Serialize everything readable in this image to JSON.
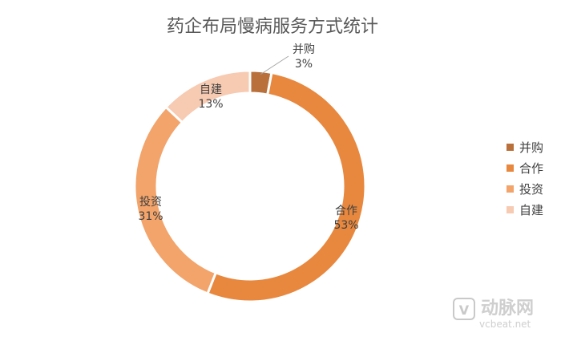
{
  "chart_data": {
    "type": "pie",
    "variant": "donut",
    "title": "药企布局慢病服务方式统计",
    "categories": [
      "并购",
      "合作",
      "投资",
      "自建"
    ],
    "values": [
      3,
      53,
      31,
      13
    ],
    "value_labels": [
      "3%",
      "53%",
      "31%",
      "13%"
    ],
    "colors": [
      "#b9703a",
      "#e8883e",
      "#f2a46b",
      "#f7cab2"
    ],
    "start_angle": "top (12 o'clock), clockwise",
    "legend_position": "right"
  },
  "watermark": {
    "brand": "动脉网",
    "url": "vcbeat.net"
  }
}
